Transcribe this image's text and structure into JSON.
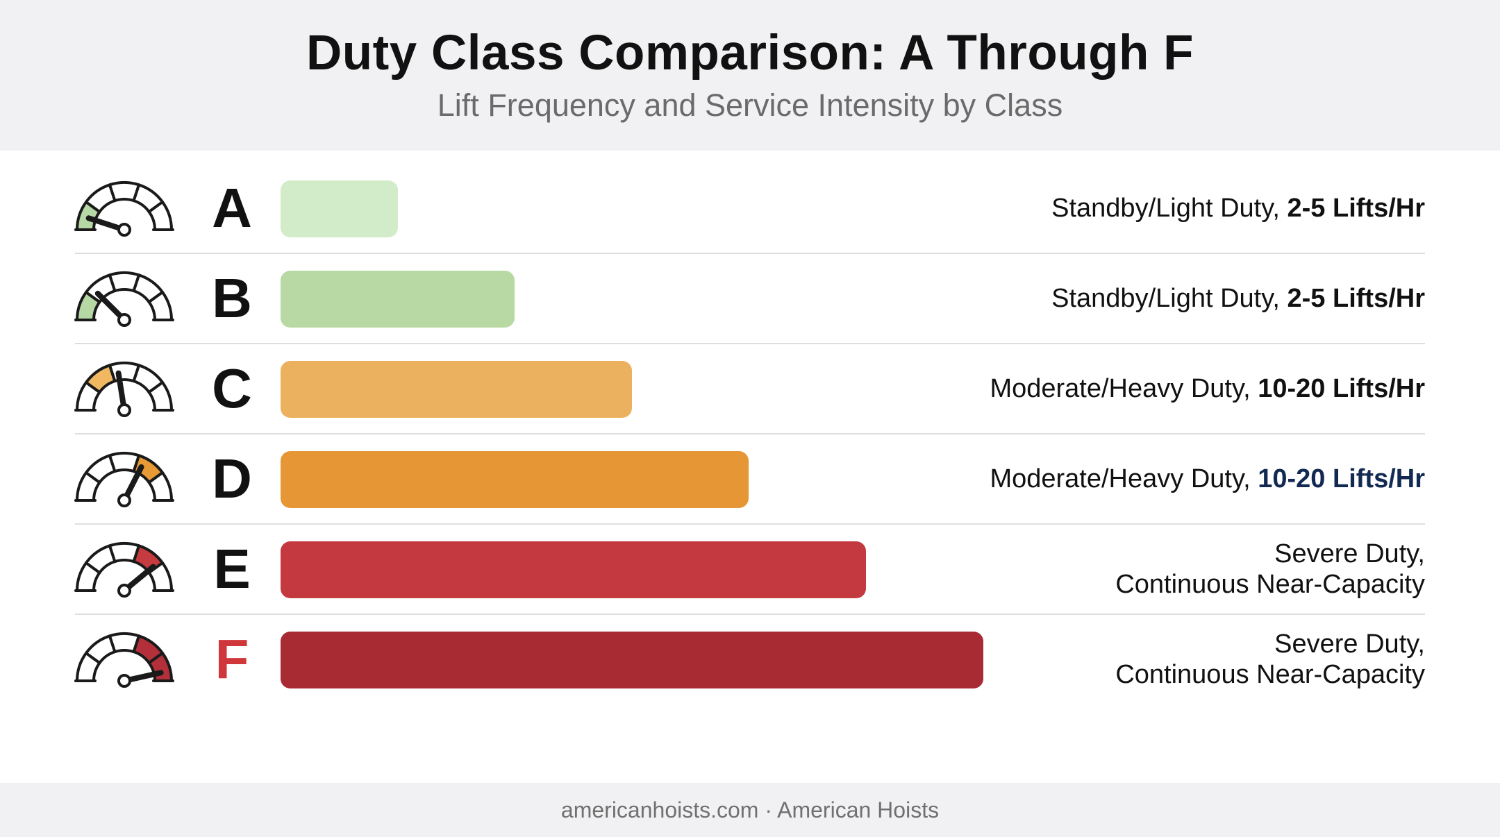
{
  "title": "Duty Class Comparison: A Through F",
  "subtitle": "Lift Frequency and Service Intensity by Class",
  "footer": "americanhoists.com · American Hoists",
  "chart_data": {
    "type": "bar",
    "orientation": "horizontal",
    "title": "Duty Class Comparison: A Through F",
    "subtitle": "Lift Frequency and Service Intensity by Class",
    "categories": [
      "A",
      "B",
      "C",
      "D",
      "E",
      "F"
    ],
    "values": [
      1,
      2,
      3,
      4,
      5,
      6
    ],
    "bar_colors": [
      "#d2ecc9",
      "#b8d9a3",
      "#ecb15e",
      "#e69635",
      "#c4393f",
      "#a82a33"
    ],
    "descriptions": [
      {
        "text": "Standby/Light Duty, ",
        "bold": "2-5 Lifts/Hr"
      },
      {
        "text": "Standby/Light Duty, ",
        "bold": "2-5 Lifts/Hr"
      },
      {
        "text": "Moderate/Heavy Duty, ",
        "bold": "10-20 Lifts/Hr"
      },
      {
        "text": "Moderate/Heavy Duty, ",
        "bold": "10-20 Lifts/Hr"
      },
      {
        "text": "Severe Duty,",
        "line2": "Continuous Near-Capacity"
      },
      {
        "text": "Severe Duty,",
        "line2": "Continuous Near-Capacity"
      }
    ],
    "gauge_levels": [
      0.1,
      0.25,
      0.45,
      0.65,
      0.78,
      0.93
    ],
    "gauge_icon": "speedometer-icon"
  }
}
